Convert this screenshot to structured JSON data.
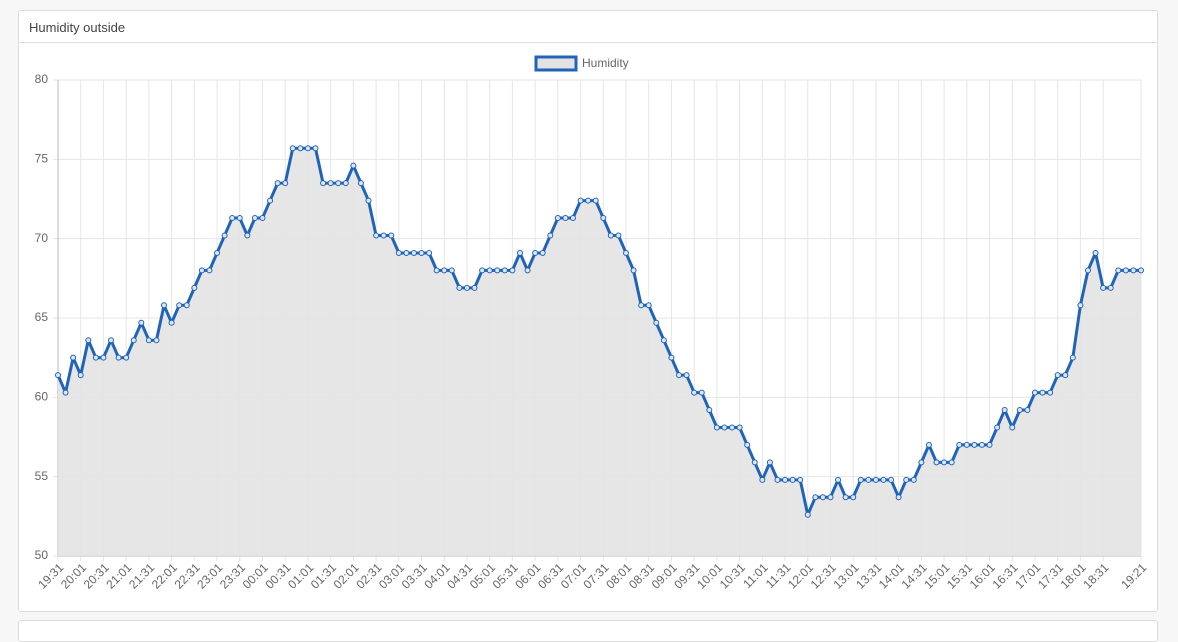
{
  "chart_data": {
    "type": "line",
    "title": "Humidity outside",
    "legend": "top",
    "grid": true,
    "categories": [
      "19:31",
      null,
      null,
      "20:01",
      null,
      null,
      "20:31",
      null,
      null,
      "21:01",
      null,
      null,
      "21:31",
      null,
      null,
      "22:01",
      null,
      null,
      "22:31",
      null,
      null,
      "23:01",
      null,
      null,
      "23:31",
      null,
      null,
      "00:01",
      null,
      null,
      "00:31",
      null,
      null,
      "01:01",
      null,
      null,
      "01:31",
      null,
      null,
      "02:01",
      null,
      null,
      "02:31",
      null,
      null,
      "03:01",
      null,
      null,
      "03:31",
      null,
      null,
      "04:01",
      null,
      null,
      "04:31",
      null,
      null,
      "05:01",
      null,
      null,
      "05:31",
      null,
      null,
      "06:01",
      null,
      null,
      "06:31",
      null,
      null,
      "07:01",
      null,
      null,
      "07:31",
      null,
      null,
      "08:01",
      null,
      null,
      "08:31",
      null,
      null,
      "09:01",
      null,
      null,
      "09:31",
      null,
      null,
      "10:01",
      null,
      null,
      "10:31",
      null,
      null,
      "11:01",
      null,
      null,
      "11:31",
      null,
      null,
      "12:01",
      null,
      null,
      "12:31",
      null,
      null,
      "13:01",
      null,
      null,
      "13:31",
      null,
      null,
      "14:01",
      null,
      null,
      "14:31",
      null,
      null,
      "15:01",
      null,
      null,
      "15:31",
      null,
      null,
      "16:01",
      null,
      null,
      "16:31",
      null,
      null,
      "17:01",
      null,
      null,
      "17:31",
      null,
      null,
      "18:01",
      null,
      null,
      "18:31",
      null,
      null,
      null,
      null,
      "19:21"
    ],
    "series": [
      {
        "name": "Humidity",
        "color": "#1f64b8",
        "fill": "#e3e3e3",
        "values": [
          61.4,
          60.3,
          62.5,
          61.4,
          63.6,
          62.5,
          62.5,
          63.6,
          62.5,
          62.5,
          63.6,
          64.7,
          63.6,
          63.6,
          65.8,
          64.7,
          65.8,
          65.8,
          66.9,
          68.0,
          68.0,
          69.1,
          70.2,
          71.3,
          71.3,
          70.2,
          71.3,
          71.3,
          72.4,
          73.5,
          73.5,
          75.7,
          75.7,
          75.7,
          75.7,
          73.5,
          73.5,
          73.5,
          73.5,
          74.6,
          73.5,
          72.4,
          70.2,
          70.2,
          70.2,
          69.1,
          69.1,
          69.1,
          69.1,
          69.1,
          68.0,
          68.0,
          68.0,
          66.9,
          66.9,
          66.9,
          68.0,
          68.0,
          68.0,
          68.0,
          68.0,
          69.1,
          68.0,
          69.1,
          69.1,
          70.2,
          71.3,
          71.3,
          71.3,
          72.4,
          72.4,
          72.4,
          71.3,
          70.2,
          70.2,
          69.1,
          68.0,
          65.8,
          65.8,
          64.7,
          63.6,
          62.5,
          61.4,
          61.4,
          60.3,
          60.3,
          59.2,
          58.1,
          58.1,
          58.1,
          58.1,
          57.0,
          55.9,
          54.8,
          55.9,
          54.8,
          54.8,
          54.8,
          54.8,
          52.6,
          53.7,
          53.7,
          53.7,
          54.8,
          53.7,
          53.7,
          54.8,
          54.8,
          54.8,
          54.8,
          54.8,
          53.7,
          54.8,
          54.8,
          55.9,
          57.0,
          55.9,
          55.9,
          55.9,
          57.0,
          57.0,
          57.0,
          57.0,
          57.0,
          58.1,
          59.2,
          58.1,
          59.2,
          59.2,
          60.3,
          60.3,
          60.3,
          61.4,
          61.4,
          62.5,
          65.8,
          68.0,
          69.1,
          66.9,
          66.9,
          68.0,
          68.0,
          68.0,
          68.0
        ]
      }
    ],
    "ylim": [
      50,
      80
    ],
    "yticks": [
      50,
      55,
      60,
      65,
      70,
      75,
      80
    ]
  }
}
